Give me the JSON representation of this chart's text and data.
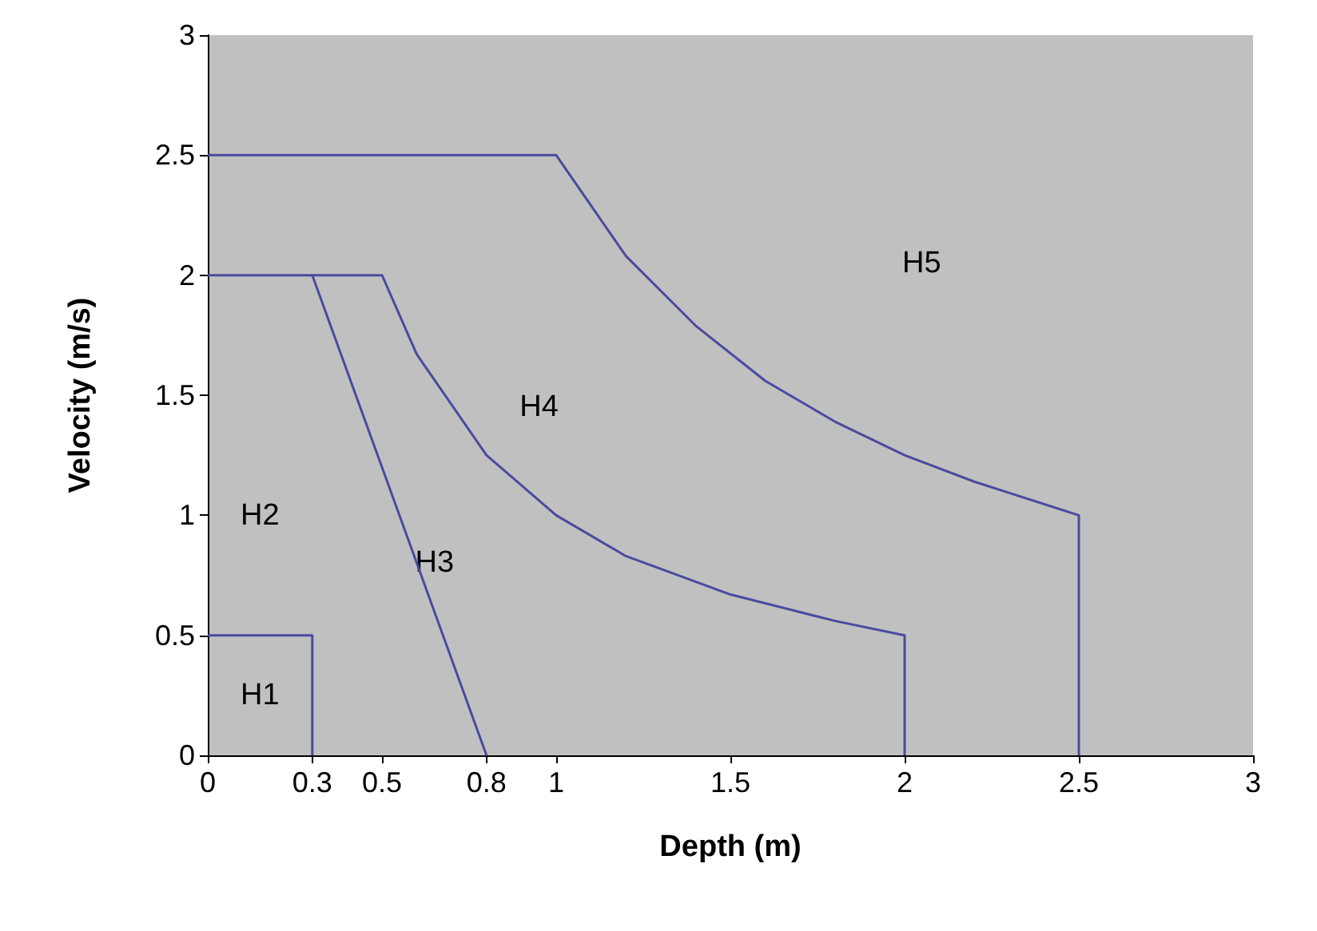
{
  "chart_data": {
    "type": "line",
    "xlabel": "Depth (m)",
    "ylabel": "Velocity (m/s)",
    "xlim": [
      0,
      3
    ],
    "xticks": [
      0,
      0.3,
      0.5,
      0.8,
      1,
      1.5,
      2,
      2.5,
      3
    ],
    "ylim": [
      0,
      3
    ],
    "yticks": [
      0,
      0.5,
      1,
      1.5,
      2,
      2.5,
      3
    ],
    "grid": false,
    "marker": "none",
    "line_style": "solid",
    "series": [
      {
        "color": "#4a4aa0",
        "x": [
          0,
          0.3,
          0.3
        ],
        "values": [
          0.5,
          0.5,
          0
        ]
      },
      {
        "color": "#4a4aa0",
        "x": [
          0,
          0.3,
          0.8
        ],
        "values": [
          2,
          2,
          0
        ]
      },
      {
        "color": "#4a4aa0",
        "x": [
          0.3,
          0.5,
          0.6,
          0.8,
          1,
          1.2,
          1.5,
          1.8,
          2,
          2
        ],
        "values": [
          2,
          2,
          1.67,
          1.25,
          1,
          0.83,
          0.67,
          0.56,
          0.5,
          0
        ]
      },
      {
        "color": "#4a4aa0",
        "x": [
          0,
          1,
          1.2,
          1.4,
          1.6,
          1.8,
          2,
          2.2,
          2.5,
          2.5
        ],
        "values": [
          2.5,
          2.5,
          2.08,
          1.79,
          1.56,
          1.39,
          1.25,
          1.14,
          1,
          0
        ]
      }
    ],
    "annotations": [
      "H1",
      "H2",
      "H3",
      "H4",
      "H5"
    ]
  }
}
